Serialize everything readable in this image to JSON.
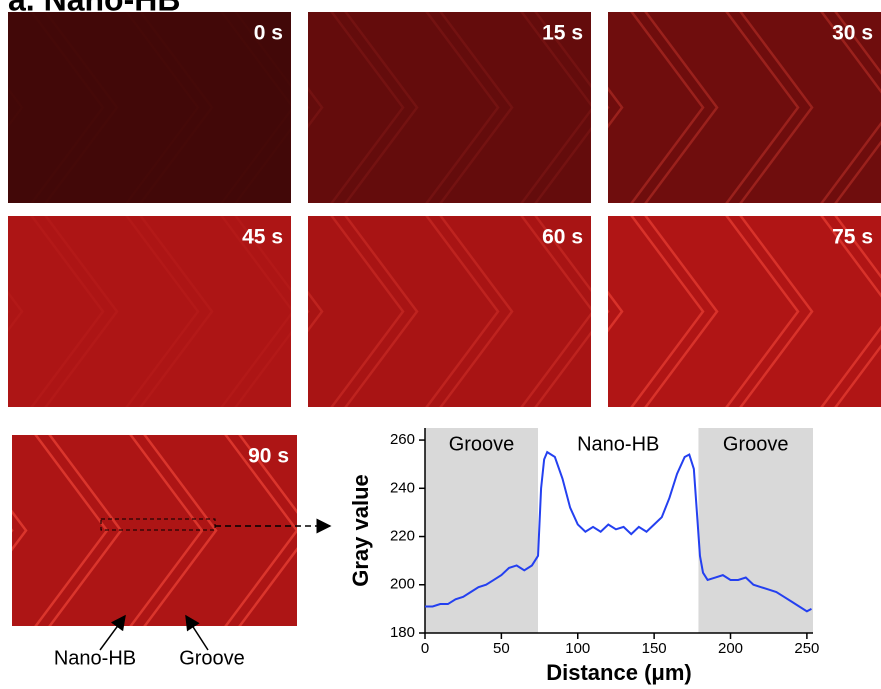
{
  "title": "a.  Nano-HB",
  "panels": [
    {
      "label": "0 s"
    },
    {
      "label": "15 s"
    },
    {
      "label": "30 s"
    },
    {
      "label": "45 s"
    },
    {
      "label": "60 s"
    },
    {
      "label": "75 s"
    },
    {
      "label": "90 s"
    }
  ],
  "annotations": [
    "Nano-HB",
    "Groove"
  ],
  "chart_data": {
    "type": "line",
    "xlabel": "Distance (μm)",
    "ylabel": "Gray value",
    "xlim": [
      0,
      254
    ],
    "ylim": [
      180,
      265
    ],
    "xticks": [
      0,
      50,
      100,
      150,
      200,
      250
    ],
    "yticks": [
      180,
      200,
      220,
      240,
      260
    ],
    "regions": [
      {
        "label": "Groove",
        "start": 0,
        "end": 74,
        "color": "#d9d9d9"
      },
      {
        "label": "Nano-HB",
        "start": 74,
        "end": 179,
        "color": "#ffffff"
      },
      {
        "label": "Groove",
        "start": 179,
        "end": 254,
        "color": "#d9d9d9"
      }
    ],
    "x": [
      0,
      5,
      10,
      15,
      20,
      25,
      30,
      35,
      40,
      45,
      50,
      55,
      60,
      65,
      70,
      74,
      76,
      78,
      80,
      85,
      90,
      95,
      100,
      105,
      110,
      115,
      120,
      125,
      130,
      135,
      140,
      145,
      150,
      155,
      160,
      165,
      170,
      173,
      176,
      178,
      180,
      182,
      185,
      190,
      195,
      200,
      205,
      210,
      215,
      220,
      225,
      230,
      235,
      240,
      245,
      250,
      253
    ],
    "series": [
      {
        "color": "#2440f0",
        "values": [
          191,
          191,
          192,
          192,
          194,
          195,
          197,
          199,
          200,
          202,
          204,
          207,
          208,
          206,
          208,
          212,
          240,
          252,
          255,
          253,
          244,
          232,
          225,
          222,
          224,
          222,
          225,
          223,
          224,
          221,
          224,
          222,
          225,
          228,
          236,
          246,
          253,
          254,
          248,
          230,
          212,
          205,
          202,
          203,
          204,
          202,
          202,
          203,
          200,
          199,
          198,
          197,
          195,
          193,
          191,
          189,
          190
        ]
      }
    ]
  }
}
